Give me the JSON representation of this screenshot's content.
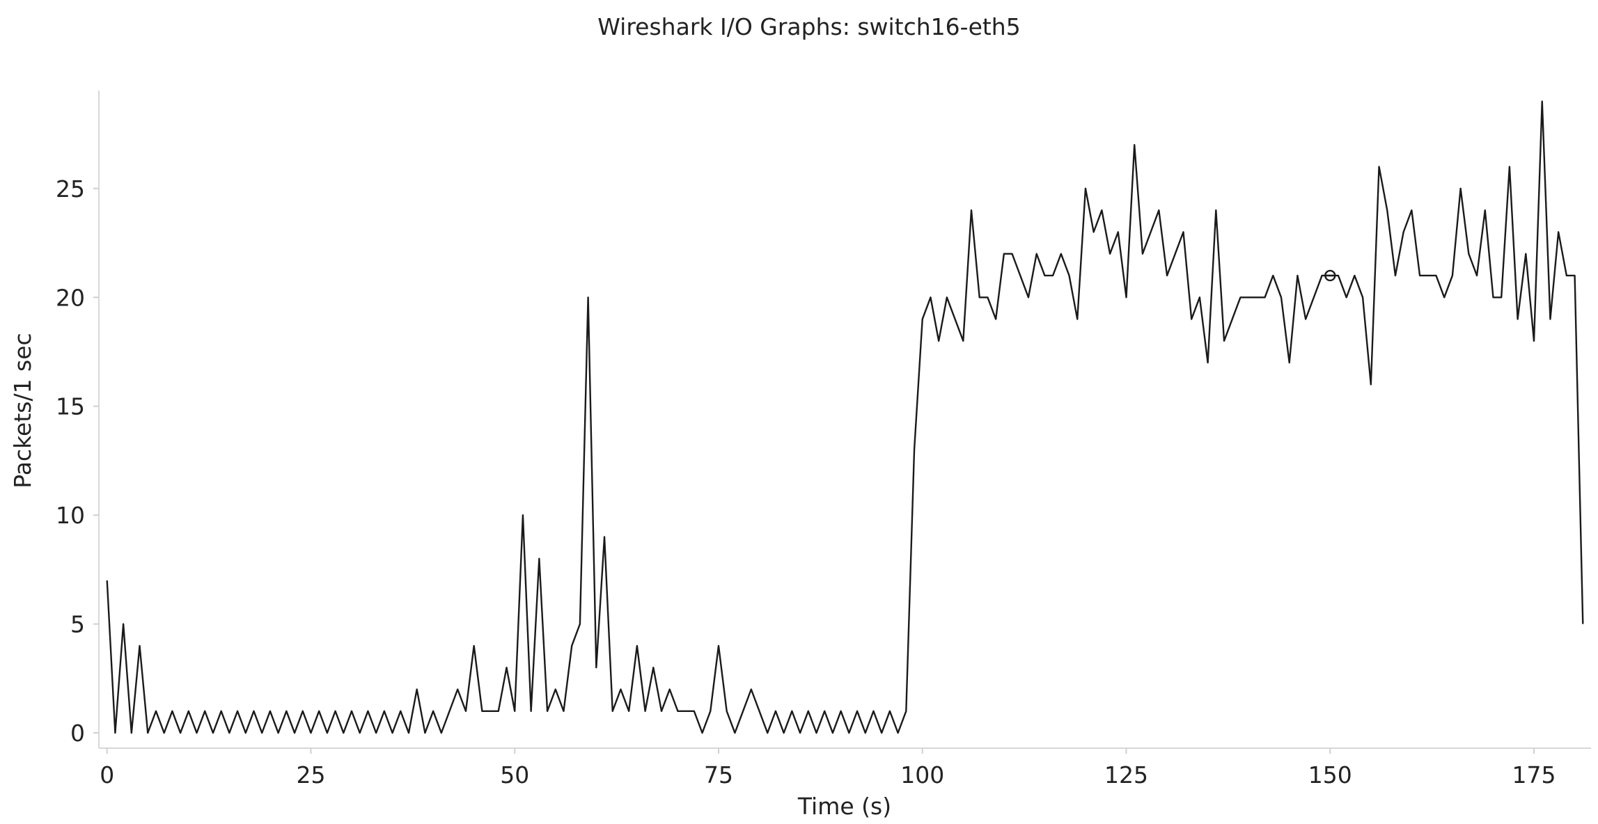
{
  "chart_data": {
    "type": "line",
    "title": "Wireshark I/O Graphs: switch16-eth5",
    "xlabel": "Time (s)",
    "ylabel": "Packets/1 sec",
    "xlim": [
      -1,
      182
    ],
    "ylim": [
      -0.7,
      29.5
    ],
    "xticks": [
      0,
      25,
      50,
      75,
      100,
      125,
      150,
      175
    ],
    "yticks": [
      0,
      5,
      10,
      15,
      20,
      25
    ],
    "grid": false,
    "legend": "none",
    "line_color": "#1a1a1a",
    "series": [
      {
        "x": [
          0,
          1,
          2,
          3,
          4,
          5,
          6,
          7,
          8,
          9,
          10,
          11,
          12,
          13,
          14,
          15,
          16,
          17,
          18,
          19,
          20,
          21,
          22,
          23,
          24,
          25,
          26,
          27,
          28,
          29,
          30,
          31,
          32,
          33,
          34,
          35,
          36,
          37,
          38,
          39,
          40,
          41,
          42,
          43,
          44,
          45,
          46,
          47,
          48,
          49,
          50,
          51,
          52,
          53,
          54,
          55,
          56,
          57,
          58,
          59,
          60,
          61,
          62,
          63,
          64,
          65,
          66,
          67,
          68,
          69,
          70,
          71,
          72,
          73,
          74,
          75,
          76,
          77,
          78,
          79,
          80,
          81,
          82,
          83,
          84,
          85,
          86,
          87,
          88,
          89,
          90,
          91,
          92,
          93,
          94,
          95,
          96,
          97,
          98,
          99,
          100,
          101,
          102,
          103,
          104,
          105,
          106,
          107,
          108,
          109,
          110,
          111,
          112,
          113,
          114,
          115,
          116,
          117,
          118,
          119,
          120,
          121,
          122,
          123,
          124,
          125,
          126,
          127,
          128,
          129,
          130,
          131,
          132,
          133,
          134,
          135,
          136,
          137,
          138,
          139,
          140,
          141,
          142,
          143,
          144,
          145,
          146,
          147,
          148,
          149,
          150,
          151,
          152,
          153,
          154,
          155,
          156,
          157,
          158,
          159,
          160,
          161,
          162,
          163,
          164,
          165,
          166,
          167,
          168,
          169,
          170,
          171,
          172,
          173,
          174,
          175,
          176,
          177,
          178,
          179,
          180,
          181
        ],
        "y": [
          7,
          0,
          5,
          0,
          4,
          0,
          1,
          0,
          1,
          0,
          1,
          0,
          1,
          0,
          1,
          0,
          1,
          0,
          1,
          0,
          1,
          0,
          1,
          0,
          1,
          0,
          1,
          0,
          1,
          0,
          1,
          0,
          1,
          0,
          1,
          0,
          1,
          0,
          2,
          0,
          1,
          0,
          1,
          2,
          1,
          4,
          1,
          1,
          1,
          3,
          1,
          10,
          1,
          8,
          1,
          2,
          1,
          4,
          5,
          20,
          3,
          9,
          1,
          2,
          1,
          4,
          1,
          3,
          1,
          2,
          1,
          1,
          1,
          0,
          1,
          4,
          1,
          0,
          1,
          2,
          1,
          0,
          1,
          0,
          1,
          0,
          1,
          0,
          1,
          0,
          1,
          0,
          1,
          0,
          1,
          0,
          1,
          0,
          1,
          13,
          19,
          20,
          18,
          20,
          19,
          18,
          24,
          20,
          20,
          19,
          22,
          22,
          21,
          20,
          22,
          21,
          21,
          22,
          21,
          19,
          25,
          23,
          24,
          22,
          23,
          20,
          27,
          22,
          23,
          24,
          21,
          22,
          23,
          19,
          20,
          17,
          24,
          18,
          19,
          20,
          20,
          20,
          20,
          21,
          20,
          17,
          21,
          19,
          20,
          21,
          21,
          21,
          20,
          21,
          20,
          16,
          26,
          24,
          21,
          23,
          24,
          21,
          21,
          21,
          20,
          21,
          25,
          22,
          21,
          24,
          20,
          20,
          26,
          19,
          22,
          18,
          29,
          19,
          23,
          21,
          21,
          5
        ]
      }
    ],
    "marker": {
      "x": 150,
      "y": 21
    }
  }
}
